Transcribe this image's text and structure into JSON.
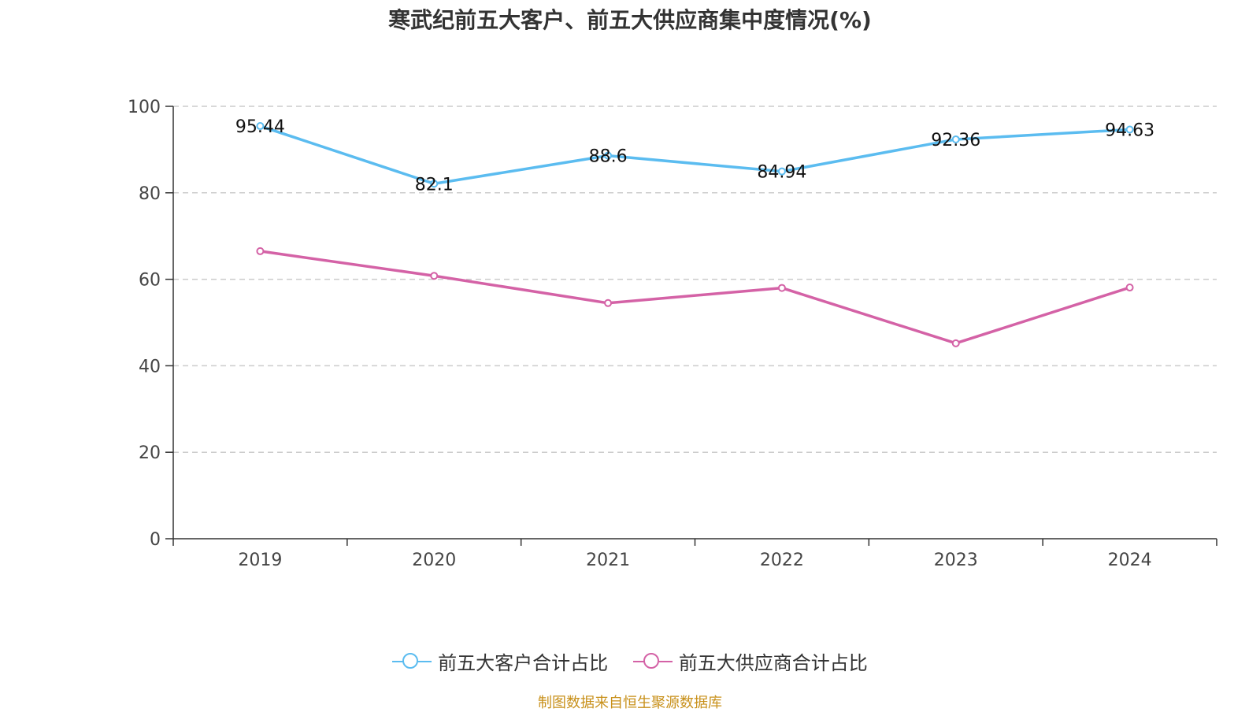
{
  "chart_data": {
    "type": "line",
    "title": "寒武纪前五大客户、前五大供应商集中度情况(%)",
    "categories": [
      "2019",
      "2020",
      "2021",
      "2022",
      "2023",
      "2024"
    ],
    "ylim": [
      0,
      100
    ],
    "yticks": [
      0,
      20,
      40,
      60,
      80,
      100
    ],
    "grid": true,
    "legend_position": "bottom",
    "series": [
      {
        "name": "前五大客户合计占比",
        "color": "#5bbcf0",
        "values": [
          95.44,
          82.1,
          88.6,
          84.94,
          92.36,
          94.63
        ],
        "labels": [
          "95.44",
          "82.1",
          "88.6",
          "84.94",
          "92.36",
          "94.63"
        ],
        "show_labels": true
      },
      {
        "name": "前五大供应商合计占比",
        "color": "#d462a6",
        "values": [
          66.5,
          60.8,
          54.5,
          58.0,
          45.2,
          58.1
        ],
        "show_labels": false
      }
    ]
  },
  "source_note": "制图数据来自恒生聚源数据库"
}
